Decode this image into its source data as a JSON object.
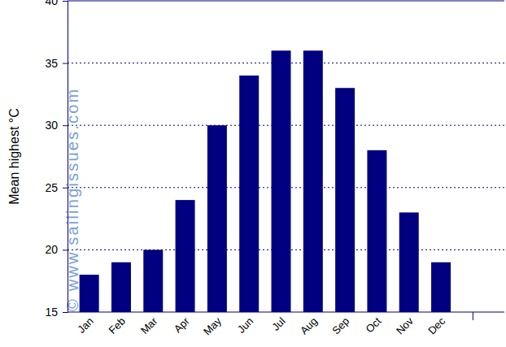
{
  "chart_data": {
    "type": "bar",
    "y_label": "Mean highest °C",
    "annotations": [
      "© www.sailingissues.com"
    ],
    "categories": [
      "Jan",
      "Feb",
      "Mar",
      "Apr",
      "May",
      "Jun",
      "Jul",
      "Aug",
      "Sep",
      "Oct",
      "Nov",
      "Dec",
      null
    ],
    "values": [
      18,
      19,
      20,
      24,
      30,
      34,
      36,
      36,
      33,
      28,
      23,
      19,
      null
    ],
    "color": "#000080",
    "ylim": [
      15,
      40
    ],
    "yticks": [
      15,
      20,
      25,
      30,
      35,
      40
    ],
    "grid": true
  }
}
